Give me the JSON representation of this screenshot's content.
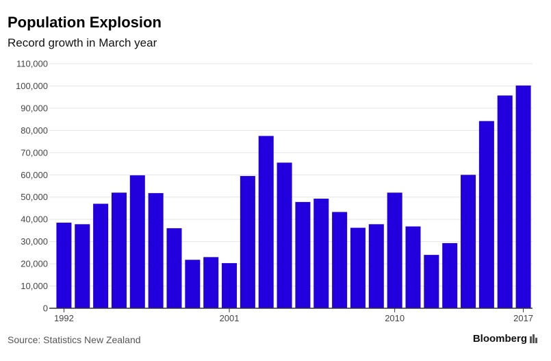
{
  "chart_data": {
    "type": "bar",
    "title": "Population Explosion",
    "subtitle": "Record growth in March year",
    "categories": [
      "1992",
      "1993",
      "1994",
      "1995",
      "1996",
      "1997",
      "1998",
      "1999",
      "2000",
      "2001",
      "2002",
      "2003",
      "2004",
      "2005",
      "2006",
      "2007",
      "2008",
      "2009",
      "2010",
      "2011",
      "2012",
      "2013",
      "2014",
      "2015",
      "2016",
      "2017"
    ],
    "x_tick_labels": [
      "1992",
      "2001",
      "2010",
      "2017"
    ],
    "values": [
      38500,
      37800,
      47000,
      52000,
      59800,
      51800,
      36000,
      21800,
      23000,
      20300,
      59500,
      77500,
      65500,
      47800,
      49300,
      43300,
      36200,
      37800,
      52000,
      36800,
      24000,
      29300,
      60000,
      84200,
      95700,
      100200
    ],
    "ylim": [
      0,
      110000
    ],
    "y_ticks": [
      "0",
      "10,000",
      "20,000",
      "30,000",
      "40,000",
      "50,000",
      "60,000",
      "70,000",
      "80,000",
      "90,000",
      "100,000",
      "110,000"
    ],
    "xlabel": "",
    "ylabel": "",
    "grid": true,
    "bar_color": "#2200dd"
  },
  "footer": {
    "source": "Source: Statistics New Zealand",
    "brand": "Bloomberg"
  }
}
